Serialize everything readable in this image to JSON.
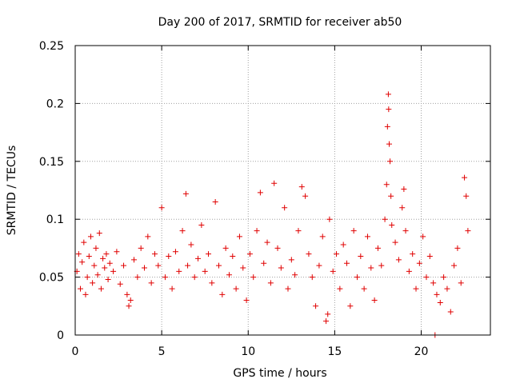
{
  "chart_data": {
    "type": "scatter",
    "title": "Day 200 of 2017, SRMTID for receiver ab50",
    "xlabel": "GPS time / hours",
    "ylabel": "SRMTID / TECUs",
    "xlim": [
      0,
      24
    ],
    "ylim": [
      0,
      0.25
    ],
    "x_ticks": [
      0,
      5,
      10,
      15,
      20
    ],
    "x_tick_labels": [
      "0",
      "5",
      "10",
      "15",
      "20"
    ],
    "y_ticks": [
      0,
      0.05,
      0.1,
      0.15,
      0.2,
      0.25
    ],
    "y_tick_labels": [
      "0",
      "0.05",
      "0.1",
      "0.15",
      "0.2",
      "0.25"
    ],
    "grid": true,
    "marker": "+",
    "color": "#e00000",
    "series": [
      {
        "name": "SRMTID",
        "points": [
          [
            0.1,
            0.055
          ],
          [
            0.2,
            0.07
          ],
          [
            0.3,
            0.04
          ],
          [
            0.4,
            0.063
          ],
          [
            0.5,
            0.08
          ],
          [
            0.6,
            0.035
          ],
          [
            0.7,
            0.05
          ],
          [
            0.8,
            0.068
          ],
          [
            0.9,
            0.085
          ],
          [
            1.0,
            0.045
          ],
          [
            1.1,
            0.06
          ],
          [
            1.2,
            0.075
          ],
          [
            1.3,
            0.052
          ],
          [
            1.4,
            0.088
          ],
          [
            1.5,
            0.04
          ],
          [
            1.6,
            0.066
          ],
          [
            1.7,
            0.058
          ],
          [
            1.8,
            0.07
          ],
          [
            1.9,
            0.048
          ],
          [
            2.0,
            0.062
          ],
          [
            2.2,
            0.055
          ],
          [
            2.4,
            0.072
          ],
          [
            2.6,
            0.044
          ],
          [
            2.8,
            0.06
          ],
          [
            3.0,
            0.035
          ],
          [
            3.1,
            0.025
          ],
          [
            3.2,
            0.03
          ],
          [
            3.4,
            0.065
          ],
          [
            3.6,
            0.05
          ],
          [
            3.8,
            0.075
          ],
          [
            4.0,
            0.058
          ],
          [
            4.2,
            0.085
          ],
          [
            4.4,
            0.045
          ],
          [
            4.6,
            0.07
          ],
          [
            4.8,
            0.06
          ],
          [
            5.0,
            0.11
          ],
          [
            5.2,
            0.05
          ],
          [
            5.4,
            0.068
          ],
          [
            5.6,
            0.04
          ],
          [
            5.8,
            0.072
          ],
          [
            6.0,
            0.055
          ],
          [
            6.2,
            0.09
          ],
          [
            6.4,
            0.122
          ],
          [
            6.5,
            0.06
          ],
          [
            6.7,
            0.078
          ],
          [
            6.9,
            0.05
          ],
          [
            7.1,
            0.066
          ],
          [
            7.3,
            0.095
          ],
          [
            7.5,
            0.055
          ],
          [
            7.7,
            0.07
          ],
          [
            7.9,
            0.045
          ],
          [
            8.1,
            0.115
          ],
          [
            8.3,
            0.06
          ],
          [
            8.5,
            0.035
          ],
          [
            8.7,
            0.075
          ],
          [
            8.9,
            0.052
          ],
          [
            9.1,
            0.068
          ],
          [
            9.3,
            0.04
          ],
          [
            9.5,
            0.085
          ],
          [
            9.7,
            0.058
          ],
          [
            9.9,
            0.03
          ],
          [
            10.1,
            0.07
          ],
          [
            10.3,
            0.05
          ],
          [
            10.5,
            0.09
          ],
          [
            10.7,
            0.123
          ],
          [
            10.9,
            0.062
          ],
          [
            11.1,
            0.08
          ],
          [
            11.3,
            0.045
          ],
          [
            11.5,
            0.131
          ],
          [
            11.7,
            0.075
          ],
          [
            11.9,
            0.058
          ],
          [
            12.1,
            0.11
          ],
          [
            12.3,
            0.04
          ],
          [
            12.5,
            0.065
          ],
          [
            12.7,
            0.052
          ],
          [
            12.9,
            0.09
          ],
          [
            13.1,
            0.128
          ],
          [
            13.3,
            0.12
          ],
          [
            13.5,
            0.07
          ],
          [
            13.7,
            0.05
          ],
          [
            13.9,
            0.025
          ],
          [
            14.1,
            0.06
          ],
          [
            14.3,
            0.085
          ],
          [
            14.5,
            0.012
          ],
          [
            14.6,
            0.018
          ],
          [
            14.7,
            0.1
          ],
          [
            14.9,
            0.055
          ],
          [
            15.1,
            0.07
          ],
          [
            15.3,
            0.04
          ],
          [
            15.5,
            0.078
          ],
          [
            15.7,
            0.062
          ],
          [
            15.9,
            0.025
          ],
          [
            16.1,
            0.09
          ],
          [
            16.3,
            0.05
          ],
          [
            16.5,
            0.068
          ],
          [
            16.7,
            0.04
          ],
          [
            16.9,
            0.085
          ],
          [
            17.1,
            0.058
          ],
          [
            17.3,
            0.03
          ],
          [
            17.5,
            0.075
          ],
          [
            17.7,
            0.06
          ],
          [
            17.9,
            0.1
          ],
          [
            18.0,
            0.13
          ],
          [
            18.05,
            0.18
          ],
          [
            18.1,
            0.208
          ],
          [
            18.12,
            0.195
          ],
          [
            18.15,
            0.165
          ],
          [
            18.2,
            0.15
          ],
          [
            18.25,
            0.12
          ],
          [
            18.3,
            0.095
          ],
          [
            18.5,
            0.08
          ],
          [
            18.7,
            0.065
          ],
          [
            18.9,
            0.11
          ],
          [
            19.0,
            0.126
          ],
          [
            19.1,
            0.09
          ],
          [
            19.3,
            0.055
          ],
          [
            19.5,
            0.07
          ],
          [
            19.7,
            0.04
          ],
          [
            19.9,
            0.062
          ],
          [
            20.1,
            0.085
          ],
          [
            20.3,
            0.05
          ],
          [
            20.5,
            0.068
          ],
          [
            20.7,
            0.045
          ],
          [
            20.8,
            0.0
          ],
          [
            20.9,
            0.035
          ],
          [
            21.1,
            0.028
          ],
          [
            21.3,
            0.05
          ],
          [
            21.5,
            0.04
          ],
          [
            21.7,
            0.02
          ],
          [
            21.9,
            0.06
          ],
          [
            22.1,
            0.075
          ],
          [
            22.3,
            0.045
          ],
          [
            22.5,
            0.136
          ],
          [
            22.6,
            0.12
          ],
          [
            22.7,
            0.09
          ]
        ]
      }
    ]
  }
}
